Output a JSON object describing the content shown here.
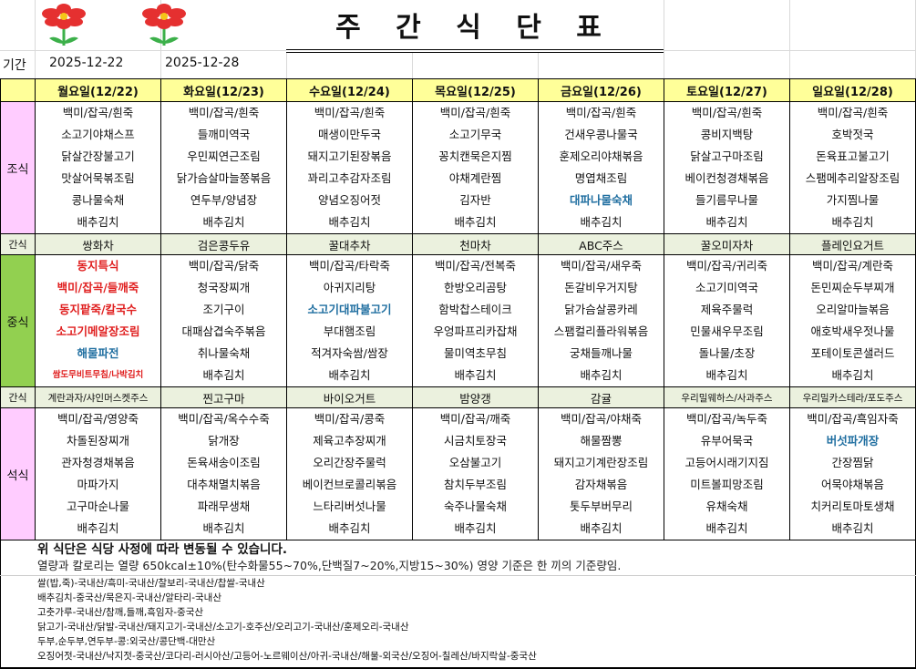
{
  "title": "주 간 식 단 표",
  "period": {
    "label": "기간",
    "from": "2025-12-22",
    "to": "2025-12-28"
  },
  "colors": {
    "header": "#ffff99",
    "breakfast": "#ffccff",
    "lunch": "#92d050",
    "dinner": "#ffccff",
    "snack": "#ebf1de",
    "highlight_red": "#e02020",
    "highlight_blue": "#1f6ea0"
  },
  "meal_labels": {
    "breakfast": "조식",
    "snack": "간식",
    "lunch": "중식",
    "dinner": "석식"
  },
  "days": [
    {
      "header": "월요일(12/22)",
      "breakfast": [
        "백미/잡곡/흰죽",
        "소고기야채스프",
        "닭살간장불고기",
        "맛살어묵볶조림",
        "콩나물숙채",
        "배추김치"
      ],
      "snack1": "쌍화차",
      "lunch": [
        "동지특식",
        "백미/잡곡/들깨죽",
        "동지팥죽/칼국수",
        "소고기메알장조림",
        "해물파전",
        "쌈도무비트무침/나박김치"
      ],
      "snack2": "계란과자/샤인머스켓주스",
      "dinner": [
        "백미/잡곡/영양죽",
        "차돌된장찌개",
        "관자청경채볶음",
        "마파가지",
        "고구마순나물",
        "배추김치"
      ]
    },
    {
      "header": "화요일(12/23)",
      "breakfast": [
        "백미/잡곡/흰죽",
        "들깨미역국",
        "우민찌연근조림",
        "닭가슴살마늘쫑볶음",
        "연두부/양념장",
        "배추김치"
      ],
      "snack1": "검은콩두유",
      "lunch": [
        "백미/잡곡/닭죽",
        "청국장찌개",
        "조기구이",
        "대패삼겹숙주볶음",
        "취나물숙채",
        "배추김치"
      ],
      "snack2": "찐고구마",
      "dinner": [
        "백미/잡곡/옥수수죽",
        "닭개장",
        "돈육새송이조림",
        "대추채멸치볶음",
        "파래무생채",
        "배추김치"
      ]
    },
    {
      "header": "수요일(12/24)",
      "breakfast": [
        "백미/잡곡/흰죽",
        "매생이만두국",
        "돼지고기된장볶음",
        "꽈리고추감자조림",
        "양념오징어젓",
        "배추김치"
      ],
      "snack1": "꿀대추차",
      "lunch": [
        "백미/잡곡/타락죽",
        "아귀지리탕",
        "소고기대파불고기",
        "부대햄조림",
        "적겨자숙쌈/쌈장",
        "배추김치"
      ],
      "snack2": "바이오거트",
      "dinner": [
        "백미/잡곡/콩죽",
        "제육고추장찌개",
        "오리간장주물럭",
        "베이컨브로콜리볶음",
        "느타리버섯나물",
        "배추김치"
      ]
    },
    {
      "header": "목요일(12/25)",
      "breakfast": [
        "백미/잡곡/흰죽",
        "소고기무국",
        "꽁치캔묵은지찜",
        "야채계란찜",
        "김자반",
        "배추김치"
      ],
      "snack1": "천마차",
      "lunch": [
        "백미/잡곡/전복죽",
        "한방오리곰탕",
        "함박찹스테이크",
        "우엉파프리카잡채",
        "물미역초무침",
        "배추김치"
      ],
      "snack2": "밤양갱",
      "dinner": [
        "백미/잡곡/깨죽",
        "시금치토장국",
        "오삼불고기",
        "참치두부조림",
        "숙주나물숙채",
        "배추김치"
      ]
    },
    {
      "header": "금요일(12/26)",
      "breakfast": [
        "백미/잡곡/흰죽",
        "건새우콩나물국",
        "훈제오리야채볶음",
        "명엽채조림",
        "대파나물숙채",
        "배추김치"
      ],
      "snack1": "ABC주스",
      "lunch": [
        "백미/잡곡/새우죽",
        "돈갈비우거지탕",
        "닭가슴살콩카레",
        "스팸컬리플라워볶음",
        "궁채들깨나물",
        "배추김치"
      ],
      "snack2": "감귤",
      "dinner": [
        "백미/잡곡/야채죽",
        "해물짬뽕",
        "돼지고기계란장조림",
        "감자채볶음",
        "톳두부버무리",
        "배추김치"
      ]
    },
    {
      "header": "토요일(12/27)",
      "breakfast": [
        "백미/잡곡/흰죽",
        "콩비지백탕",
        "닭살고구마조림",
        "베이컨청경채볶음",
        "들기름무나물",
        "배추김치"
      ],
      "snack1": "꿀오미자차",
      "lunch": [
        "백미/잡곡/귀리죽",
        "소고기미역국",
        "제육주물럭",
        "민물새우무조림",
        "돌나물/초장",
        "배추김치"
      ],
      "snack2": "우리밀웨하스/사과주스",
      "dinner": [
        "백미/잡곡/녹두죽",
        "유부어묵국",
        "고등어시래기지짐",
        "미트볼피망조림",
        "유채숙채",
        "배추김치"
      ]
    },
    {
      "header": "일요일(12/28)",
      "breakfast": [
        "백미/잡곡/흰죽",
        "호박젓국",
        "돈육표고불고기",
        "스팸메추리알장조림",
        "가지찜나물",
        "배추김치"
      ],
      "snack1": "플레인요거트",
      "lunch": [
        "백미/잡곡/계란죽",
        "돈민찌순두부찌개",
        "오리알마늘볶음",
        "애호박새우젓나물",
        "포테이토콘샐러드",
        "배추김치"
      ],
      "snack2": "우리밀카스테라/포도주스",
      "dinner": [
        "백미/잡곡/흑임자죽",
        "버섯파개장",
        "간장찜닭",
        "어묵야채볶음",
        "치커리토마토생채",
        "배추김치"
      ]
    }
  ],
  "highlights": [
    {
      "day": 0,
      "meal": "lunch",
      "index": 0,
      "style": "red"
    },
    {
      "day": 0,
      "meal": "lunch",
      "index": 1,
      "style": "red"
    },
    {
      "day": 0,
      "meal": "lunch",
      "index": 2,
      "style": "red"
    },
    {
      "day": 0,
      "meal": "lunch",
      "index": 3,
      "style": "red"
    },
    {
      "day": 0,
      "meal": "lunch",
      "index": 4,
      "style": "blue"
    },
    {
      "day": 0,
      "meal": "lunch",
      "index": 5,
      "style": "red-small"
    },
    {
      "day": 2,
      "meal": "lunch",
      "index": 2,
      "style": "blue"
    },
    {
      "day": 4,
      "meal": "breakfast",
      "index": 4,
      "style": "blue"
    },
    {
      "day": 6,
      "meal": "dinner",
      "index": 1,
      "style": "blue"
    }
  ],
  "notes": {
    "line1": "위 식단은 식당 사정에 따라 변동될 수 있습니다.",
    "line2": "열량과 칼로리는 열량 650kcal±10%(탄수화물55~70%,단백질7~20%,지방15~30%) 영양 기준은 한 끼의 기준량임."
  },
  "origins": [
    "쌀(밥,죽)-국내산/흑미-국내산/찰보리-국내산/찹쌀-국내산",
    "배추김치-중국산/묵은지-국내산/알타리-국내산",
    "고춧가루-국내산/참깨,들깨,흑임자-중국산",
    "닭고기-국내산/닭발-국내산/돼지고기-국내산/소고기-호주산/오리고기-국내산/훈제오리-국내산",
    "두부,순두부,연두부-콩:외국산/콩단백-대만산",
    "오징어젓-국내산/낙지젓-중국산/코다리-러시아산/고등어-노르웨이산/아귀-국내산/해물-외국산/오징어-칠레산/바지락살-중국산"
  ]
}
